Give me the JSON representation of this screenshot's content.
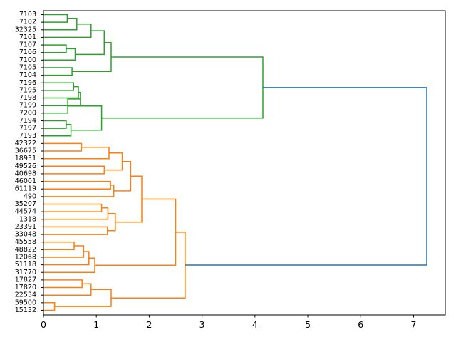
{
  "chart_data": {
    "type": "dendrogram",
    "orientation": "left-to-right",
    "xlim": [
      0,
      7.6
    ],
    "x_ticks": [
      0,
      1,
      2,
      3,
      4,
      5,
      6,
      7
    ],
    "x_tick_labels": [
      "0",
      "1",
      "2",
      "3",
      "4",
      "5",
      "6",
      "7"
    ],
    "colors": {
      "cluster_a": "#2ca02c",
      "cluster_b": "#ff7f0e",
      "root": "#1f77b4",
      "axis": "#000000"
    },
    "leaves": [
      "7103",
      "7102",
      "32325",
      "7101",
      "7107",
      "7106",
      "7100",
      "7105",
      "7104",
      "7196",
      "7195",
      "7198",
      "7199",
      "7200",
      "7194",
      "7197",
      "7193",
      "42322",
      "36675",
      "18931",
      "49526",
      "40698",
      "46001",
      "61119",
      "490",
      "35207",
      "44574",
      "1318",
      "23391",
      "33048",
      "45558",
      "48822",
      "12068",
      "51118",
      "31770",
      "17827",
      "17820",
      "22534",
      "59500",
      "15132"
    ],
    "merges": [
      {
        "a": "7103",
        "b": "7102",
        "height": 0.45,
        "color": "cluster_a"
      },
      {
        "a": "m0",
        "b": "32325",
        "height": 0.63,
        "color": "cluster_a"
      },
      {
        "a": "m1",
        "b": "7101",
        "height": 0.9,
        "color": "cluster_a"
      },
      {
        "a": "7107",
        "b": "7106",
        "height": 0.43,
        "color": "cluster_a"
      },
      {
        "a": "m3",
        "b": "7100",
        "height": 0.6,
        "color": "cluster_a"
      },
      {
        "a": "m2",
        "b": "m4",
        "height": 1.15,
        "color": "cluster_a"
      },
      {
        "a": "7105",
        "b": "7104",
        "height": 0.54,
        "color": "cluster_a"
      },
      {
        "a": "m5",
        "b": "m6",
        "height": 1.28,
        "color": "cluster_a"
      },
      {
        "a": "7196",
        "b": "7195",
        "height": 0.57,
        "color": "cluster_a"
      },
      {
        "a": "m8",
        "b": "7198",
        "height": 0.66,
        "color": "cluster_a"
      },
      {
        "a": "m9",
        "b": "7199",
        "height": 0.7,
        "color": "cluster_a"
      },
      {
        "a": "m10",
        "b": "7200",
        "height": 0.46,
        "color": "cluster_a"
      },
      {
        "a": "7194",
        "b": "7197",
        "height": 0.43,
        "color": "cluster_a"
      },
      {
        "a": "m12",
        "b": "7193",
        "height": 0.52,
        "color": "cluster_a"
      },
      {
        "a": "m11",
        "b": "m13",
        "height": 1.1,
        "color": "cluster_a"
      },
      {
        "a": "m7",
        "b": "m14",
        "height": 4.15,
        "color": "cluster_a"
      },
      {
        "a": "42322",
        "b": "36675",
        "height": 0.72,
        "color": "cluster_b"
      },
      {
        "a": "m16",
        "b": "18931",
        "height": 1.24,
        "color": "cluster_b"
      },
      {
        "a": "49526",
        "b": "40698",
        "height": 1.15,
        "color": "cluster_b"
      },
      {
        "a": "m17",
        "b": "m18",
        "height": 1.49,
        "color": "cluster_b"
      },
      {
        "a": "46001",
        "b": "61119",
        "height": 1.27,
        "color": "cluster_b"
      },
      {
        "a": "m20",
        "b": "490",
        "height": 1.33,
        "color": "cluster_b"
      },
      {
        "a": "m19",
        "b": "m21",
        "height": 1.65,
        "color": "cluster_b"
      },
      {
        "a": "35207",
        "b": "44574",
        "height": 1.1,
        "color": "cluster_b"
      },
      {
        "a": "m23",
        "b": "1318",
        "height": 1.22,
        "color": "cluster_b"
      },
      {
        "a": "23391",
        "b": "33048",
        "height": 1.21,
        "color": "cluster_b"
      },
      {
        "a": "m24",
        "b": "m25",
        "height": 1.36,
        "color": "cluster_b"
      },
      {
        "a": "m22",
        "b": "m26",
        "height": 1.86,
        "color": "cluster_b"
      },
      {
        "a": "45558",
        "b": "48822",
        "height": 0.58,
        "color": "cluster_b"
      },
      {
        "a": "m28",
        "b": "12068",
        "height": 0.76,
        "color": "cluster_b"
      },
      {
        "a": "m29",
        "b": "51118",
        "height": 0.86,
        "color": "cluster_b"
      },
      {
        "a": "m30",
        "b": "31770",
        "height": 0.97,
        "color": "cluster_b"
      },
      {
        "a": "m27",
        "b": "m31",
        "height": 2.5,
        "color": "cluster_b"
      },
      {
        "a": "17827",
        "b": "17820",
        "height": 0.73,
        "color": "cluster_b"
      },
      {
        "a": "m33",
        "b": "22534",
        "height": 0.9,
        "color": "cluster_b"
      },
      {
        "a": "59500",
        "b": "15132",
        "height": 0.21,
        "color": "cluster_b"
      },
      {
        "a": "m34",
        "b": "m35",
        "height": 1.28,
        "color": "cluster_b"
      },
      {
        "a": "m32",
        "b": "m36",
        "height": 2.68,
        "color": "cluster_b"
      },
      {
        "a": "m15",
        "b": "m37",
        "height": 7.25,
        "color": "root"
      }
    ]
  }
}
